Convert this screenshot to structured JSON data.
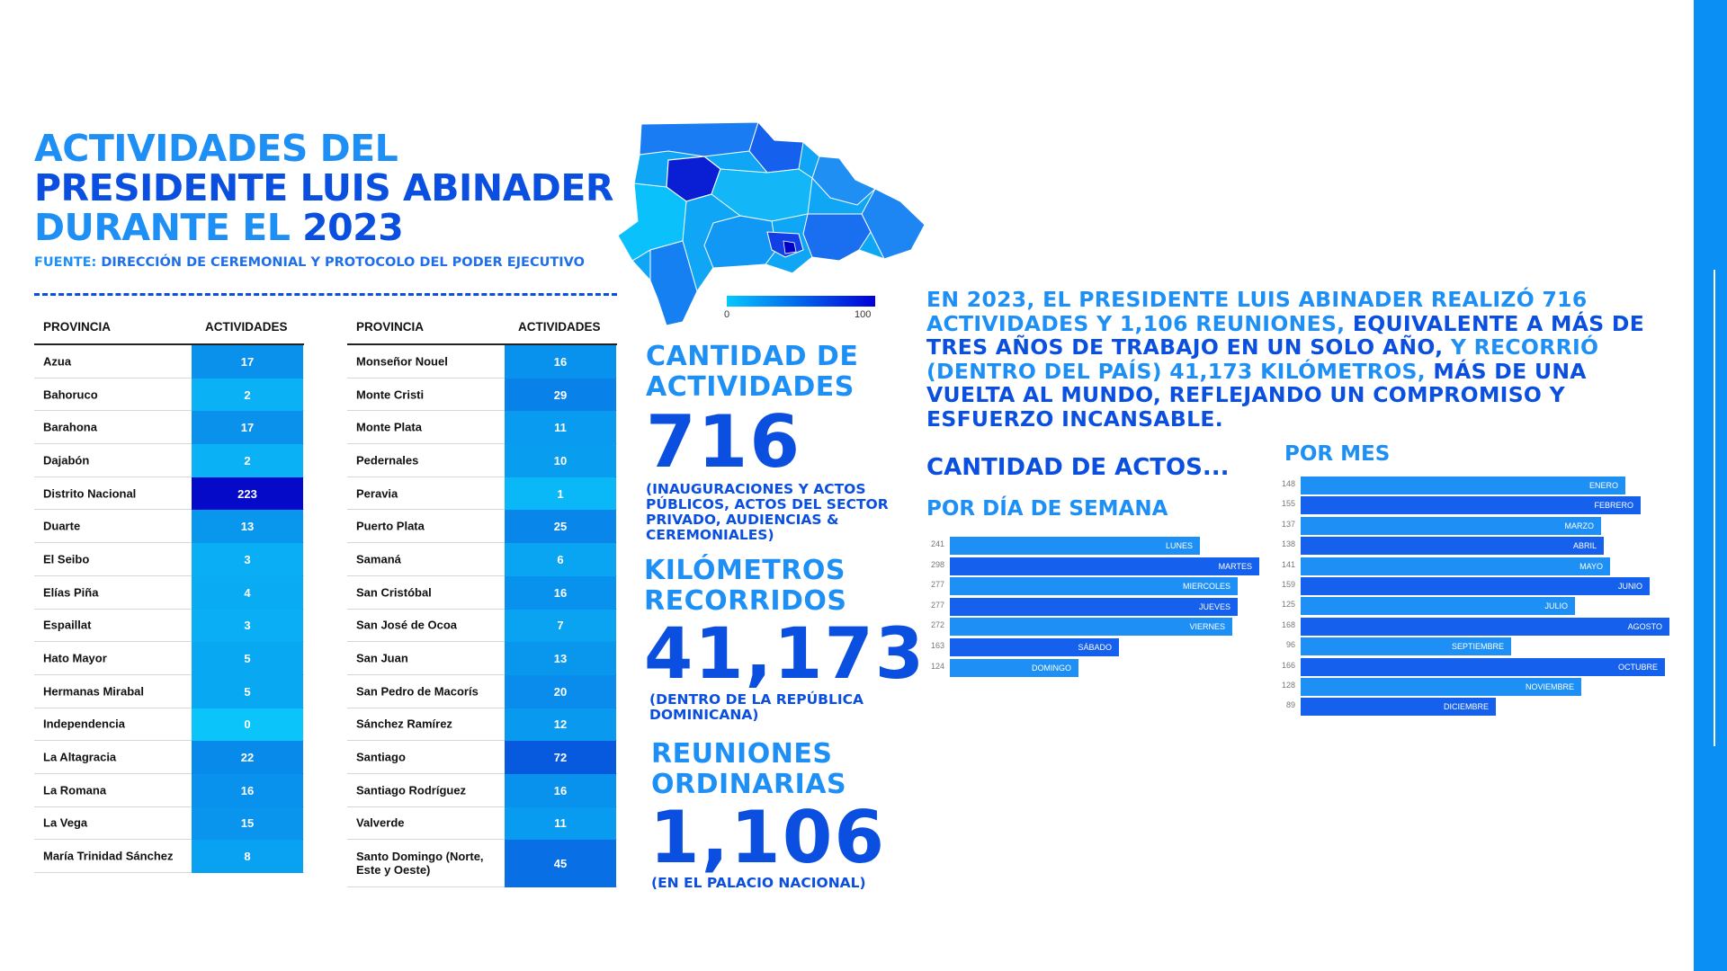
{
  "title": {
    "line1": "ACTIVIDADES DEL",
    "line2": "PRESIDENTE LUIS ABINADER",
    "line3_prefix": "DURANTE EL ",
    "line3_year": "2023"
  },
  "source": {
    "label": "FUENTE:",
    "text": " DIRECCIÓN DE CEREMONIAL Y PROTOCOLO DEL PODER EJECUTIVO"
  },
  "table_headers": {
    "province": "PROVINCIA",
    "activities": "ACTIVIDADES"
  },
  "map_legend": {
    "min": "0",
    "max": "100"
  },
  "stats": {
    "activities_label": "CANTIDAD DE ACTIVIDADES",
    "activities_value": "716",
    "activities_note": "(INAUGURACIONES Y ACTOS PÚBLICOS, ACTOS DEL SECTOR PRIVADO, AUDIENCIAS & CEREMONIALES)",
    "km_label": "KILÓMETROS RECORRIDOS",
    "km_value": "41,173",
    "km_note": "(DENTRO DE LA REPÚBLICA DOMINICANA)",
    "meetings_label": "REUNIONES ORDINARIAS",
    "meetings_value": "1,106",
    "meetings_note": "(EN EL PALACIO NACIONAL)"
  },
  "summary": {
    "p1": "EN 2023, EL PRESIDENTE LUIS ABINADER REALIZÓ 716 ACTIVIDADES Y 1,106 REUNIONES,",
    "p2": " EQUIVALENTE A MÁS DE TRES AÑOS DE TRABAJO EN UN SOLO AÑO,",
    "p3": " Y RECORRIÓ (DENTRO DEL PAÍS) 41,173 KILÓMETROS,",
    "p4": " MÁS DE UNA VUELTA AL MUNDO, REFLEJANDO UN COMPROMISO Y ESFUERZO INCANSABLE."
  },
  "headings": {
    "actos": "CANTIDAD DE ACTOS...",
    "por_dia": "POR DÍA DE SEMANA",
    "por_mes": "POR MES"
  },
  "colors": {
    "dark_blue": "#0a4fe0",
    "light_blue": "#1e90f5",
    "accent_bar": "#0a8ff5"
  },
  "chart_data": [
    {
      "type": "table",
      "columns": [
        "PROVINCIA",
        "ACTIVIDADES"
      ],
      "rows": [
        [
          "Azua",
          17
        ],
        [
          "Bahoruco",
          2
        ],
        [
          "Barahona",
          17
        ],
        [
          "Dajabón",
          2
        ],
        [
          "Distrito Nacional",
          223
        ],
        [
          "Duarte",
          13
        ],
        [
          "El Seibo",
          3
        ],
        [
          "Elías Piña",
          4
        ],
        [
          "Espaillat",
          3
        ],
        [
          "Hato Mayor",
          5
        ],
        [
          "Hermanas Mirabal",
          5
        ],
        [
          "Independencia",
          0
        ],
        [
          "La Altagracia",
          22
        ],
        [
          "La Romana",
          16
        ],
        [
          "La Vega",
          15
        ],
        [
          "María Trinidad Sánchez",
          8
        ]
      ]
    },
    {
      "type": "table",
      "columns": [
        "PROVINCIA",
        "ACTIVIDADES"
      ],
      "rows": [
        [
          "Monseñor Nouel",
          16
        ],
        [
          "Monte Cristi",
          29
        ],
        [
          "Monte Plata",
          11
        ],
        [
          "Pedernales",
          10
        ],
        [
          "Peravia",
          1
        ],
        [
          "Puerto Plata",
          25
        ],
        [
          "Samaná",
          6
        ],
        [
          "San Cristóbal",
          16
        ],
        [
          "San José de Ocoa",
          7
        ],
        [
          "San Juan",
          13
        ],
        [
          "San Pedro de Macorís",
          20
        ],
        [
          "Sánchez Ramírez",
          12
        ],
        [
          "Santiago",
          72
        ],
        [
          "Santiago Rodríguez",
          16
        ],
        [
          "Valverde",
          11
        ],
        [
          "Santo Domingo (Norte, Este y Oeste)",
          45
        ]
      ]
    },
    {
      "type": "bar",
      "orientation": "horizontal",
      "title": "POR DÍA DE SEMANA",
      "categories": [
        "LUNES",
        "MARTES",
        "MIERCOLES",
        "JUEVES",
        "VIERNES",
        "SÁBADO",
        "DOMINGO"
      ],
      "values": [
        241,
        298,
        277,
        277,
        272,
        163,
        124
      ]
    },
    {
      "type": "bar",
      "orientation": "horizontal",
      "title": "POR MES",
      "categories": [
        "ENERO",
        "FEBRERO",
        "MARZO",
        "ABRIL",
        "MAYO",
        "JUNIO",
        "JULIO",
        "AGOSTO",
        "SEPTIEMBRE",
        "OCTUBRE",
        "NOVIEMBRE",
        "DICIEMBRE"
      ],
      "values": [
        148,
        155,
        137,
        138,
        141,
        159,
        125,
        168,
        96,
        166,
        128,
        89
      ]
    }
  ]
}
